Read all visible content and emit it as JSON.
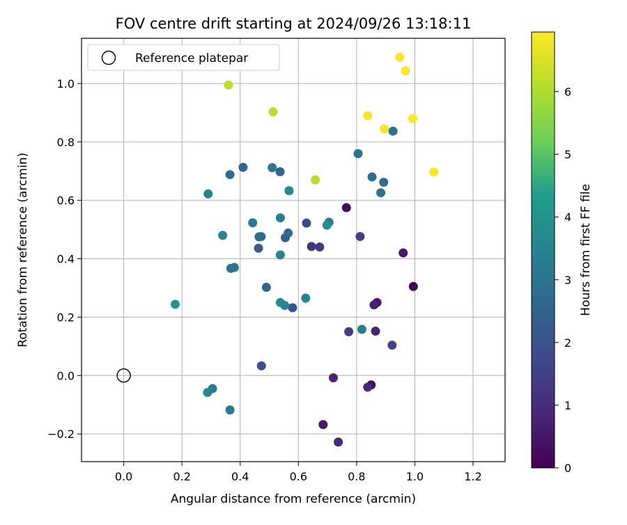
{
  "chart_data": {
    "type": "scatter",
    "title": "FOV centre drift starting at 2024/09/26 13:18:11",
    "xlabel": "Angular distance from reference (arcmin)",
    "ylabel": "Rotation from reference (arcmin)",
    "xlim": [
      -0.145,
      1.31
    ],
    "ylim": [
      -0.295,
      1.155
    ],
    "xticks": [
      "0.0",
      "0.2",
      "0.4",
      "0.6",
      "0.8",
      "1.0",
      "1.2"
    ],
    "xtick_values": [
      0.0,
      0.2,
      0.4,
      0.6,
      0.8,
      1.0,
      1.2
    ],
    "yticks": [
      "−0.2",
      "0.0",
      "0.2",
      "0.4",
      "0.6",
      "0.8",
      "1.0"
    ],
    "ytick_values": [
      -0.2,
      0.0,
      0.2,
      0.4,
      0.6,
      0.8,
      1.0
    ],
    "grid": true,
    "legend": {
      "position": "top-left",
      "entries": [
        "Reference platepar"
      ]
    },
    "reference_point": {
      "x": 0.0,
      "y": 0.0
    },
    "colorbar": {
      "label": "Hours from first FF file",
      "min": 0,
      "max": 6.95,
      "ticks": [
        "0",
        "1",
        "2",
        "3",
        "4",
        "5",
        "6"
      ],
      "tick_values": [
        0,
        1,
        2,
        3,
        4,
        5,
        6
      ],
      "colormap": "viridis"
    },
    "points": [
      {
        "x": 0.995,
        "y": 0.305,
        "h": 0.05
      },
      {
        "x": 0.765,
        "y": 0.575,
        "h": 0.2
      },
      {
        "x": 0.85,
        "y": -0.032,
        "h": 0.3
      },
      {
        "x": 0.96,
        "y": 0.42,
        "h": 0.5
      },
      {
        "x": 0.87,
        "y": 0.25,
        "h": 0.6
      },
      {
        "x": 0.86,
        "y": 0.242,
        "h": 0.7
      },
      {
        "x": 0.865,
        "y": 0.152,
        "h": 0.75
      },
      {
        "x": 0.685,
        "y": -0.168,
        "h": 0.6
      },
      {
        "x": 0.72,
        "y": -0.008,
        "h": 0.8
      },
      {
        "x": 0.838,
        "y": -0.04,
        "h": 0.9
      },
      {
        "x": 0.737,
        "y": -0.228,
        "h": 0.9
      },
      {
        "x": 0.645,
        "y": 0.442,
        "h": 1.2
      },
      {
        "x": 0.673,
        "y": 0.44,
        "h": 1.3
      },
      {
        "x": 0.812,
        "y": 0.476,
        "h": 1.4
      },
      {
        "x": 0.773,
        "y": 0.15,
        "h": 1.4
      },
      {
        "x": 0.922,
        "y": 0.104,
        "h": 1.6
      },
      {
        "x": 0.628,
        "y": 0.522,
        "h": 1.7
      },
      {
        "x": 0.473,
        "y": 0.033,
        "h": 2.0
      },
      {
        "x": 0.58,
        "y": 0.232,
        "h": 2.1
      },
      {
        "x": 0.463,
        "y": 0.436,
        "h": 2.2
      },
      {
        "x": 0.555,
        "y": 0.472,
        "h": 2.4
      },
      {
        "x": 0.49,
        "y": 0.302,
        "h": 2.5
      },
      {
        "x": 0.41,
        "y": 0.713,
        "h": 2.5
      },
      {
        "x": 0.537,
        "y": 0.698,
        "h": 2.6
      },
      {
        "x": 0.565,
        "y": 0.488,
        "h": 2.7
      },
      {
        "x": 0.472,
        "y": 0.476,
        "h": 2.7
      },
      {
        "x": 0.465,
        "y": 0.475,
        "h": 2.8
      },
      {
        "x": 0.365,
        "y": 0.688,
        "h": 2.8
      },
      {
        "x": 0.853,
        "y": 0.68,
        "h": 2.8
      },
      {
        "x": 0.893,
        "y": 0.662,
        "h": 2.8
      },
      {
        "x": 0.925,
        "y": 0.837,
        "h": 2.9
      },
      {
        "x": 0.805,
        "y": 0.76,
        "h": 3.0
      },
      {
        "x": 0.883,
        "y": 0.626,
        "h": 3.0
      },
      {
        "x": 0.38,
        "y": 0.37,
        "h": 3.0
      },
      {
        "x": 0.368,
        "y": 0.367,
        "h": 3.0
      },
      {
        "x": 0.51,
        "y": 0.712,
        "h": 3.1
      },
      {
        "x": 0.443,
        "y": 0.523,
        "h": 3.2
      },
      {
        "x": 0.705,
        "y": 0.525,
        "h": 3.2
      },
      {
        "x": 0.365,
        "y": -0.118,
        "h": 3.2
      },
      {
        "x": 0.305,
        "y": -0.045,
        "h": 3.2
      },
      {
        "x": 0.538,
        "y": 0.54,
        "h": 3.3
      },
      {
        "x": 0.818,
        "y": 0.158,
        "h": 3.3
      },
      {
        "x": 0.34,
        "y": 0.48,
        "h": 3.4
      },
      {
        "x": 0.625,
        "y": 0.265,
        "h": 3.5
      },
      {
        "x": 0.29,
        "y": 0.622,
        "h": 3.5
      },
      {
        "x": 0.538,
        "y": 0.413,
        "h": 3.6
      },
      {
        "x": 0.553,
        "y": 0.24,
        "h": 3.6
      },
      {
        "x": 0.568,
        "y": 0.633,
        "h": 3.7
      },
      {
        "x": 0.288,
        "y": -0.058,
        "h": 3.7
      },
      {
        "x": 0.538,
        "y": 0.25,
        "h": 3.8
      },
      {
        "x": 0.698,
        "y": 0.515,
        "h": 3.9
      },
      {
        "x": 0.177,
        "y": 0.244,
        "h": 4.1
      },
      {
        "x": 0.658,
        "y": 0.67,
        "h": 6.05
      },
      {
        "x": 0.513,
        "y": 0.903,
        "h": 6.1
      },
      {
        "x": 0.36,
        "y": 0.995,
        "h": 6.15
      },
      {
        "x": 1.065,
        "y": 0.697,
        "h": 6.9
      },
      {
        "x": 0.838,
        "y": 0.89,
        "h": 6.9
      },
      {
        "x": 0.895,
        "y": 0.845,
        "h": 6.9
      },
      {
        "x": 0.993,
        "y": 0.88,
        "h": 6.9
      },
      {
        "x": 0.948,
        "y": 1.09,
        "h": 6.9
      },
      {
        "x": 0.968,
        "y": 1.044,
        "h": 6.9
      }
    ]
  }
}
